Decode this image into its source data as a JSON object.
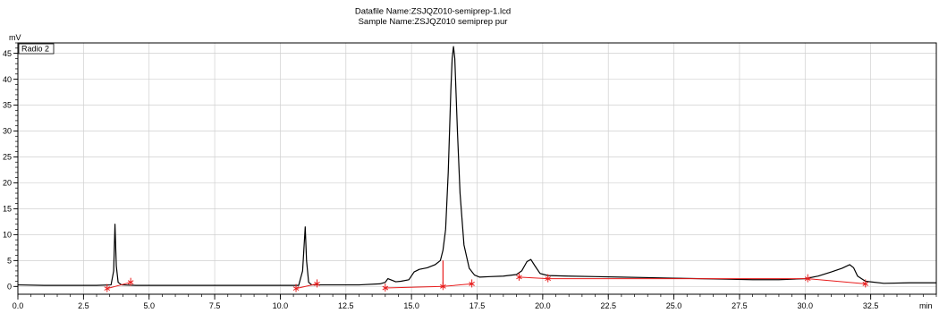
{
  "header": {
    "datafile_line": "Datafile Name:ZSJQZ010-semiprep-1.lcd",
    "sample_line": "Sample Name:ZSJQZ010 semiprep pur"
  },
  "chart_data": {
    "type": "line",
    "title": "",
    "xlabel": "min",
    "ylabel": "mV",
    "xlim": [
      0,
      35
    ],
    "ylim": [
      -1.5,
      47
    ],
    "grid": true,
    "legend": {
      "label": "Radio 2",
      "placement": "top-left"
    },
    "x_ticks": [
      0.0,
      2.5,
      5.0,
      7.5,
      10.0,
      12.5,
      15.0,
      17.5,
      20.0,
      22.5,
      25.0,
      27.5,
      30.0,
      32.5
    ],
    "x_tick_labels": [
      "0.0",
      "2.5",
      "5.0",
      "7.5",
      "10.0",
      "12.5",
      "15.0",
      "17.5",
      "20.0",
      "22.5",
      "25.0",
      "27.5",
      "30.0",
      "32.5"
    ],
    "y_ticks": [
      0,
      5,
      10,
      15,
      20,
      25,
      30,
      35,
      40,
      45
    ],
    "y_tick_labels": [
      "0",
      "5",
      "10",
      "15",
      "20",
      "25",
      "30",
      "35",
      "40",
      "45"
    ],
    "series": [
      {
        "color": "#000000",
        "x": [
          0.0,
          1.0,
          2.0,
          3.0,
          3.55,
          3.65,
          3.7,
          3.75,
          3.82,
          3.95,
          4.5,
          6.0,
          8.0,
          10.0,
          10.7,
          10.85,
          10.95,
          11.0,
          11.08,
          11.2,
          12.0,
          13.0,
          13.8,
          14.0,
          14.1,
          14.25,
          14.4,
          14.6,
          14.9,
          15.1,
          15.3,
          15.6,
          15.9,
          16.1,
          16.2,
          16.3,
          16.4,
          16.5,
          16.55,
          16.6,
          16.65,
          16.75,
          16.85,
          17.0,
          17.2,
          17.4,
          17.6,
          18.0,
          18.5,
          19.0,
          19.2,
          19.4,
          19.55,
          19.7,
          19.9,
          20.2,
          21.0,
          22.0,
          23.0,
          24.0,
          25.0,
          26.0,
          27.0,
          28.0,
          29.0,
          30.0,
          30.5,
          31.0,
          31.4,
          31.7,
          31.85,
          32.0,
          32.3,
          33.0,
          34.0,
          35.0
        ],
        "y": [
          0.3,
          0.2,
          0.2,
          0.2,
          0.3,
          3.0,
          12.0,
          4.0,
          0.8,
          0.3,
          0.2,
          0.2,
          0.2,
          0.2,
          0.2,
          3.0,
          11.5,
          5.0,
          0.8,
          0.3,
          0.3,
          0.3,
          0.5,
          0.8,
          1.5,
          1.2,
          0.9,
          1.0,
          1.3,
          2.8,
          3.3,
          3.6,
          4.2,
          5.0,
          7.0,
          11.0,
          22.0,
          38.0,
          44.0,
          46.3,
          44.0,
          30.0,
          18.0,
          8.0,
          3.5,
          2.2,
          1.8,
          1.9,
          2.0,
          2.3,
          3.0,
          4.8,
          5.2,
          4.0,
          2.5,
          2.1,
          2.0,
          1.9,
          1.8,
          1.7,
          1.6,
          1.5,
          1.4,
          1.3,
          1.3,
          1.5,
          2.0,
          2.8,
          3.5,
          4.2,
          3.6,
          2.0,
          1.0,
          0.6,
          0.7,
          0.7
        ]
      }
    ],
    "baselines": {
      "color": "#e81c1c",
      "segments": [
        {
          "x": [
            3.4,
            4.3
          ],
          "y": [
            -0.4,
            0.8
          ]
        },
        {
          "x": [
            10.6,
            11.4
          ],
          "y": [
            -0.4,
            0.5
          ]
        },
        {
          "x": [
            14.0,
            16.2
          ],
          "y": [
            -0.3,
            0.0
          ]
        },
        {
          "x": [
            16.2,
            17.3
          ],
          "y": [
            0.0,
            0.5
          ]
        },
        {
          "x": [
            19.1,
            20.2
          ],
          "y": [
            1.8,
            1.5
          ]
        },
        {
          "x": [
            20.2,
            30.1
          ],
          "y": [
            1.5,
            1.5
          ]
        },
        {
          "x": [
            30.1,
            32.3
          ],
          "y": [
            1.5,
            0.5
          ]
        }
      ],
      "drops": [
        {
          "x": 16.2,
          "y_top": 5.0,
          "y_bottom": 0.0
        }
      ],
      "markers": [
        {
          "x": 3.4,
          "y": -0.4
        },
        {
          "x": 4.3,
          "y": 0.8
        },
        {
          "x": 10.6,
          "y": -0.4
        },
        {
          "x": 11.4,
          "y": 0.5
        },
        {
          "x": 14.0,
          "y": -0.3
        },
        {
          "x": 16.2,
          "y": 0.0
        },
        {
          "x": 17.3,
          "y": 0.5
        },
        {
          "x": 19.1,
          "y": 1.8
        },
        {
          "x": 20.2,
          "y": 1.5
        },
        {
          "x": 30.1,
          "y": 1.5
        },
        {
          "x": 32.3,
          "y": 0.5
        }
      ]
    }
  }
}
